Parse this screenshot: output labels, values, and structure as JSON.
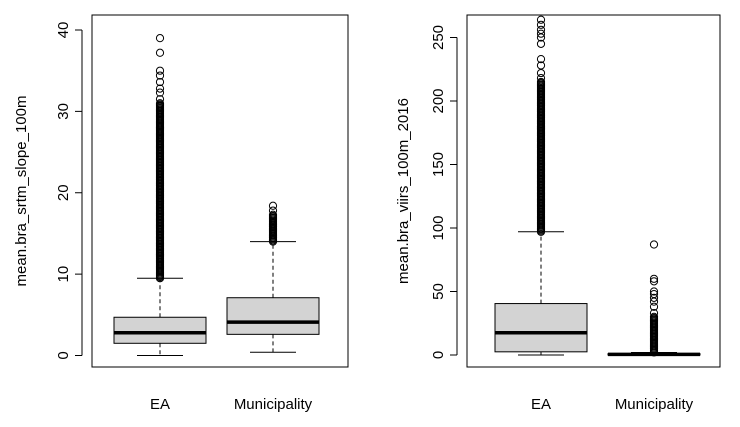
{
  "chart_data": [
    {
      "type": "boxplot",
      "title": "",
      "xlabel": "",
      "ylabel": "mean.bra_srtm_slope_100m",
      "categories": [
        "EA",
        "Municipality"
      ],
      "ylim": [
        0,
        40
      ],
      "yticks": [
        0,
        10,
        20,
        30,
        40
      ],
      "boxes": [
        {
          "name": "EA",
          "whisker_low": 0,
          "q1": 1.5,
          "median": 2.8,
          "q3": 4.7,
          "whisker_high": 9.5,
          "outliers_dense_range": [
            9.5,
            31
          ],
          "outliers_sparse": [
            31.5,
            32.3,
            32.8,
            33.6,
            34.4,
            35.0,
            37.2,
            39.0
          ]
        },
        {
          "name": "Municipality",
          "whisker_low": 0.4,
          "q1": 2.6,
          "median": 4.1,
          "q3": 7.1,
          "whisker_high": 14.0,
          "outliers_dense_range": [
            14.0,
            17.3
          ],
          "outliers_sparse": [
            17.8,
            18.4
          ]
        }
      ]
    },
    {
      "type": "boxplot",
      "title": "",
      "xlabel": "",
      "ylabel": "mean.bra_viirs_100m_2016",
      "categories": [
        "EA",
        "Municipality"
      ],
      "ylim": [
        0,
        265
      ],
      "yticks": [
        0,
        50,
        100,
        150,
        200,
        250
      ],
      "boxes": [
        {
          "name": "EA",
          "whisker_low": 0,
          "q1": 2.5,
          "median": 17.5,
          "q3": 40.5,
          "whisker_high": 97,
          "outliers_dense_range": [
            97,
            215
          ],
          "outliers_sparse": [
            218,
            222,
            228,
            233,
            245,
            250,
            253,
            256,
            260,
            264
          ]
        },
        {
          "name": "Municipality",
          "whisker_low": 0,
          "q1": 0,
          "median": 0.5,
          "q3": 1,
          "whisker_high": 2,
          "outliers_dense_range": [
            2,
            30
          ],
          "outliers_sparse": [
            33,
            38,
            42,
            45,
            48,
            50,
            58,
            60,
            87
          ]
        }
      ]
    }
  ]
}
